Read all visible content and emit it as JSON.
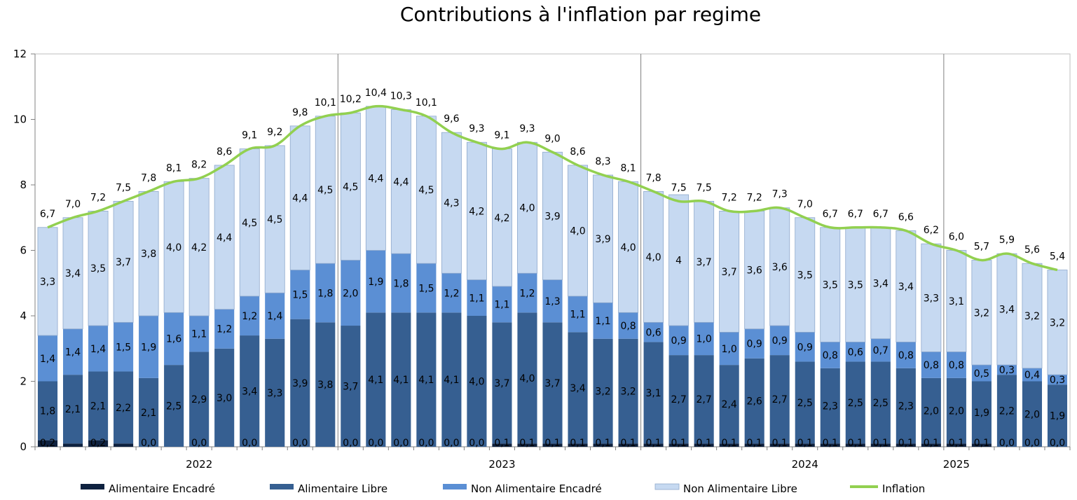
{
  "chart_data": {
    "type": "bar",
    "title": "Contributions à l'inflation par regime",
    "ylim": [
      0,
      12
    ],
    "yticks": [
      "0",
      "2",
      "4",
      "6",
      "8",
      "10",
      "12"
    ],
    "year_labels": [
      {
        "label": "2022",
        "index": 6.5
      },
      {
        "label": "2023",
        "index": 18.5
      },
      {
        "label": "2024",
        "index": 30.5
      },
      {
        "label": "2025",
        "index": 36.5
      }
    ],
    "year_dividers": [
      12,
      24,
      36
    ],
    "series": [
      {
        "name": "Alimentaire Encadré",
        "color": "#0f2240",
        "values": [
          0.2,
          0.1,
          0.2,
          0.1,
          0.0,
          0.0,
          0.0,
          0.0,
          0.0,
          0.0,
          0.0,
          0.0,
          0.0,
          0.0,
          0.0,
          0.0,
          0.0,
          0.0,
          0.1,
          0.1,
          0.1,
          0.1,
          0.1,
          0.1,
          0.1,
          0.1,
          0.1,
          0.1,
          0.1,
          0.1,
          0.1,
          0.1,
          0.1,
          0.1,
          0.1,
          0.1,
          0.1,
          0.1,
          0.0,
          0.0,
          0.0
        ],
        "labels": [
          "0,2",
          "",
          "0,2",
          "",
          "0,0",
          "",
          "0,0",
          "",
          "0,0",
          "",
          "0,0",
          "",
          "0,0",
          "0,0",
          "0,0",
          "0,0",
          "0,0",
          "0,0",
          "0,1",
          "0,1",
          "0,1",
          "0,1",
          "0,1",
          "0,1",
          "0,1",
          "0,1",
          "0,1",
          "0,1",
          "0,1",
          "0,1",
          "0,1",
          "0,1",
          "0,1",
          "0,1",
          "0,1",
          "0,1",
          "0,1",
          "0,1",
          "0,0",
          "0,0",
          "0,0"
        ]
      },
      {
        "name": "Alimentaire Libre",
        "color": "#365f91",
        "values": [
          1.8,
          2.1,
          2.1,
          2.2,
          2.1,
          2.5,
          2.9,
          3.0,
          3.4,
          3.3,
          3.9,
          3.8,
          3.7,
          4.1,
          4.1,
          4.1,
          4.1,
          4.0,
          3.7,
          4.0,
          3.7,
          3.4,
          3.2,
          3.2,
          3.1,
          2.7,
          2.7,
          2.4,
          2.6,
          2.7,
          2.5,
          2.3,
          2.5,
          2.5,
          2.3,
          2.0,
          2.0,
          1.9,
          2.2,
          2.0,
          1.9
        ],
        "labels": [
          "1,8",
          "2,1",
          "2,1",
          "2,2",
          "2,1",
          "2,5",
          "2,9",
          "3,0",
          "3,4",
          "3,3",
          "3,9",
          "3,8",
          "3,7",
          "4,1",
          "4,1",
          "4,1",
          "4,1",
          "4,0",
          "3,7",
          "4,0",
          "3,7",
          "3,4",
          "3,2",
          "3,2",
          "3,1",
          "2,7",
          "2,7",
          "2,4",
          "2,6",
          "2,7",
          "2,5",
          "2,3",
          "2,5",
          "2,5",
          "2,3",
          "2,0",
          "2,0",
          "1,9",
          "2,2",
          "2,0",
          "1,9"
        ]
      },
      {
        "name": "Non Alimentaire Encadré",
        "color": "#5b8fd4",
        "values": [
          1.4,
          1.4,
          1.4,
          1.5,
          1.9,
          1.6,
          1.1,
          1.2,
          1.2,
          1.4,
          1.5,
          1.8,
          2.0,
          1.9,
          1.8,
          1.5,
          1.2,
          1.1,
          1.1,
          1.2,
          1.3,
          1.1,
          1.1,
          0.8,
          0.6,
          0.9,
          1.0,
          1.0,
          0.9,
          0.9,
          0.9,
          0.8,
          0.6,
          0.7,
          0.8,
          0.8,
          0.8,
          0.5,
          0.3,
          0.4,
          0.3
        ],
        "labels": [
          "1,4",
          "1,4",
          "1,4",
          "1,5",
          "1,9",
          "1,6",
          "1,1",
          "1,2",
          "1,2",
          "1,4",
          "1,5",
          "1,8",
          "2,0",
          "1,9",
          "1,8",
          "1,5",
          "1,2",
          "1,1",
          "1,1",
          "1,2",
          "1,3",
          "1,1",
          "1,1",
          "0,8",
          "0,6",
          "0,9",
          "1,0",
          "1,0",
          "0,9",
          "0,9",
          "0,9",
          "0,8",
          "0,6",
          "0,7",
          "0,8",
          "0,8",
          "0,8",
          "0,5",
          "0,3",
          "0,4",
          "0,3"
        ]
      },
      {
        "name": "Non Alimentaire Libre",
        "color": "#c6d9f1",
        "values": [
          3.3,
          3.4,
          3.5,
          3.7,
          3.8,
          4.0,
          4.2,
          4.4,
          4.5,
          4.5,
          4.4,
          4.5,
          4.5,
          4.4,
          4.4,
          4.5,
          4.3,
          4.2,
          4.2,
          4.0,
          3.9,
          4.0,
          3.9,
          4.0,
          4.0,
          4.0,
          3.7,
          3.7,
          3.6,
          3.6,
          3.5,
          3.5,
          3.5,
          3.4,
          3.4,
          3.3,
          3.1,
          3.2,
          3.4,
          3.2,
          3.2
        ],
        "labels": [
          "3,3",
          "3,4",
          "3,5",
          "3,7",
          "3,8",
          "4,0",
          "4,2",
          "4,4",
          "4,5",
          "4,5",
          "4,4",
          "4,5",
          "4,5",
          "4,4",
          "4,4",
          "4,5",
          "4,3",
          "4,2",
          "4,2",
          "4,0",
          "3,9",
          "4,0",
          "3,9",
          "4,0",
          "4,0",
          "4",
          "3,7",
          "3,7",
          "3,6",
          "3,6",
          "3,5",
          "3,5",
          "3,5",
          "3,4",
          "3,4",
          "3,3",
          "3,1",
          "3,2",
          "3,4",
          "3,2",
          "3,2"
        ]
      },
      {
        "name": "Inflation",
        "color": "#92d050",
        "values": [
          6.7,
          7.0,
          7.2,
          7.5,
          7.8,
          8.1,
          8.2,
          8.6,
          9.1,
          9.2,
          9.8,
          10.1,
          10.2,
          10.4,
          10.3,
          10.1,
          9.6,
          9.3,
          9.1,
          9.3,
          9.0,
          8.6,
          8.3,
          8.1,
          7.8,
          7.5,
          7.5,
          7.2,
          7.2,
          7.3,
          7.0,
          6.7,
          6.7,
          6.7,
          6.6,
          6.2,
          6.0,
          5.7,
          5.9,
          5.6,
          5.4
        ],
        "labels": [
          "6,7",
          "7,0",
          "7,2",
          "7,5",
          "7,8",
          "8,1",
          "8,2",
          "8,6",
          "9,1",
          "9,2",
          "9,8",
          "10,1",
          "10,2",
          "10,4",
          "10,3",
          "10,1",
          "9,6",
          "9,3",
          "9,1",
          "9,3",
          "9,0",
          "8,6",
          "8,3",
          "8,1",
          "7,8",
          "7,5",
          "7,5",
          "7,2",
          "7,2",
          "7,3",
          "7,0",
          "6,7",
          "6,7",
          "6,7",
          "6,6",
          "6,2",
          "6,0",
          "5,7",
          "5,9",
          "5,6",
          "5,4"
        ]
      }
    ],
    "legend": {
      "placement": "bottom"
    },
    "grid": false
  }
}
